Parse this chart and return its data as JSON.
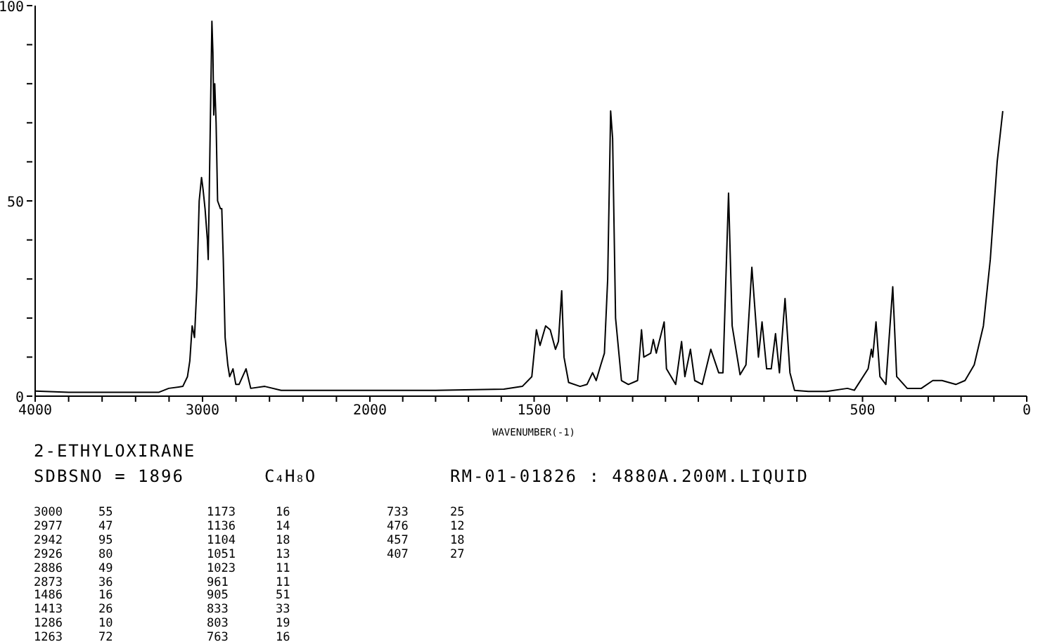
{
  "chart_data": [
    {
      "type": "line",
      "title": "2-ETHYLOXIRANE",
      "subtitle": "SDBSNO = 1896",
      "annotations": [
        "C₄H₈O",
        "RM-01-01826 : 4880A.200M.LIQUID",
        "3000",
        "55",
        "2977",
        "47",
        "2942",
        "95",
        "2926",
        "80",
        "2886",
        "49",
        "2873",
        "36",
        "1486",
        "16",
        "1413",
        "26",
        "1286",
        "10",
        "1263",
        "72",
        "1173",
        "16",
        "1136",
        "14",
        "1104",
        "18",
        "1051",
        "13",
        "1023",
        "11",
        "961",
        "11",
        "905",
        "51",
        "833",
        "33",
        "803",
        "19",
        "763",
        "16",
        "733",
        "25",
        "476",
        "12",
        "457",
        "18",
        "407",
        "27"
      ],
      "xlim": [
        4000,
        2000
      ],
      "ylim": [
        0,
        100
      ],
      "xticks": [
        4000,
        {
          "value": 3800,
          "label": null
        },
        {
          "value": 3600,
          "label": null
        },
        {
          "value": 3400,
          "label": null
        },
        {
          "value": 3200,
          "label": null
        },
        3000,
        {
          "value": 2800,
          "label": null
        },
        {
          "value": 2600,
          "label": null
        },
        {
          "value": 2400,
          "label": null
        },
        {
          "value": 2200,
          "label": null
        },
        2000
      ],
      "yticks": [
        0,
        {
          "value": 10,
          "label": null
        },
        {
          "value": 20,
          "label": null
        },
        {
          "value": 30,
          "label": null
        },
        {
          "value": 40,
          "label": null
        },
        50,
        {
          "value": 60,
          "label": null
        },
        {
          "value": 70,
          "label": null
        },
        {
          "value": 80,
          "label": null
        },
        {
          "value": 90,
          "label": null
        },
        100
      ],
      "series": [
        {
          "color": "#000000",
          "x": [
            4000,
            3800,
            3600,
            3400,
            3260,
            3202,
            3118,
            3090,
            3076,
            3062,
            3048,
            3034,
            3020,
            3006,
            2997,
            2985,
            2971,
            2966,
            2957,
            2944,
            2938,
            2933,
            2927,
            2919,
            2910,
            2893,
            2885,
            2876,
            2865,
            2849,
            2838,
            2818,
            2801,
            2782,
            2740,
            2712,
            2628,
            2530,
            2300,
            2000
          ],
          "values": [
            1.3,
            1,
            1,
            1,
            1,
            2,
            2.5,
            5,
            9,
            18,
            15,
            28,
            50,
            56,
            53,
            48,
            40,
            35,
            60,
            96,
            88,
            72,
            80,
            70,
            50,
            48,
            48,
            35,
            15,
            8,
            5,
            7,
            3,
            3,
            7,
            2,
            2.5,
            1.5,
            1.5,
            1.5
          ]
        }
      ]
    },
    {
      "type": "line",
      "xlabel": "WAVENUMBER(-1)",
      "xlim": [
        2000,
        0
      ],
      "ylim": [
        0,
        100
      ],
      "tick_labels": "x",
      "xticks": [
        {
          "value": 2000,
          "label": null
        },
        {
          "value": 1900,
          "label": null
        },
        {
          "value": 1800,
          "label": null
        },
        {
          "value": 1700,
          "label": null
        },
        {
          "value": 1600,
          "label": null
        },
        1500,
        {
          "value": 1400,
          "label": null
        },
        {
          "value": 1300,
          "label": null
        },
        {
          "value": 1200,
          "label": null
        },
        {
          "value": 1100,
          "label": null
        },
        {
          "value": 1000,
          "label": null
        },
        {
          "value": 900,
          "label": null
        },
        {
          "value": 800,
          "label": null
        },
        {
          "value": 700,
          "label": null
        },
        {
          "value": 600,
          "label": null
        },
        500,
        {
          "value": 400,
          "label": null
        },
        {
          "value": 300,
          "label": null
        },
        {
          "value": 200,
          "label": null
        },
        {
          "value": 100,
          "label": null
        },
        0
      ],
      "series": [
        {
          "color": "#000000",
          "x": [
            2000,
            1800,
            1592,
            1536,
            1507,
            1493,
            1482,
            1465,
            1451,
            1435,
            1426,
            1416,
            1409,
            1395,
            1360,
            1339,
            1322,
            1311,
            1297,
            1286,
            1276,
            1267,
            1261,
            1252,
            1234,
            1213,
            1185,
            1173,
            1166,
            1145,
            1137,
            1128,
            1104,
            1097,
            1069,
            1051,
            1041,
            1024,
            1011,
            988,
            962,
            938,
            925,
            908,
            897,
            873,
            855,
            837,
            817,
            806,
            792,
            778,
            765,
            753,
            736,
            721,
            707,
            665,
            609,
            546,
            525,
            483,
            473,
            469,
            459,
            447,
            429,
            408,
            396,
            364,
            321,
            286,
            258,
            216,
            188,
            160,
            132,
            111,
            90,
            73
          ],
          "values": [
            1.5,
            1.5,
            1.8,
            2.5,
            5,
            17,
            13,
            18,
            17,
            12,
            14,
            27,
            10,
            3.5,
            2.5,
            3,
            6,
            4,
            8,
            11,
            30,
            73,
            66,
            20,
            4,
            3,
            4,
            17,
            10,
            11,
            14.5,
            11,
            19,
            7,
            3,
            14,
            5,
            12,
            4,
            3,
            12,
            6,
            6,
            52,
            18,
            5.5,
            8,
            33,
            10,
            19,
            7,
            7,
            16,
            6,
            25,
            6,
            1.5,
            1.2,
            1.2,
            2,
            1.5,
            7,
            12,
            10,
            19,
            5,
            3,
            28,
            5,
            2,
            2,
            4,
            4,
            3,
            4,
            8,
            18,
            35,
            60,
            73
          ]
        }
      ]
    }
  ]
}
